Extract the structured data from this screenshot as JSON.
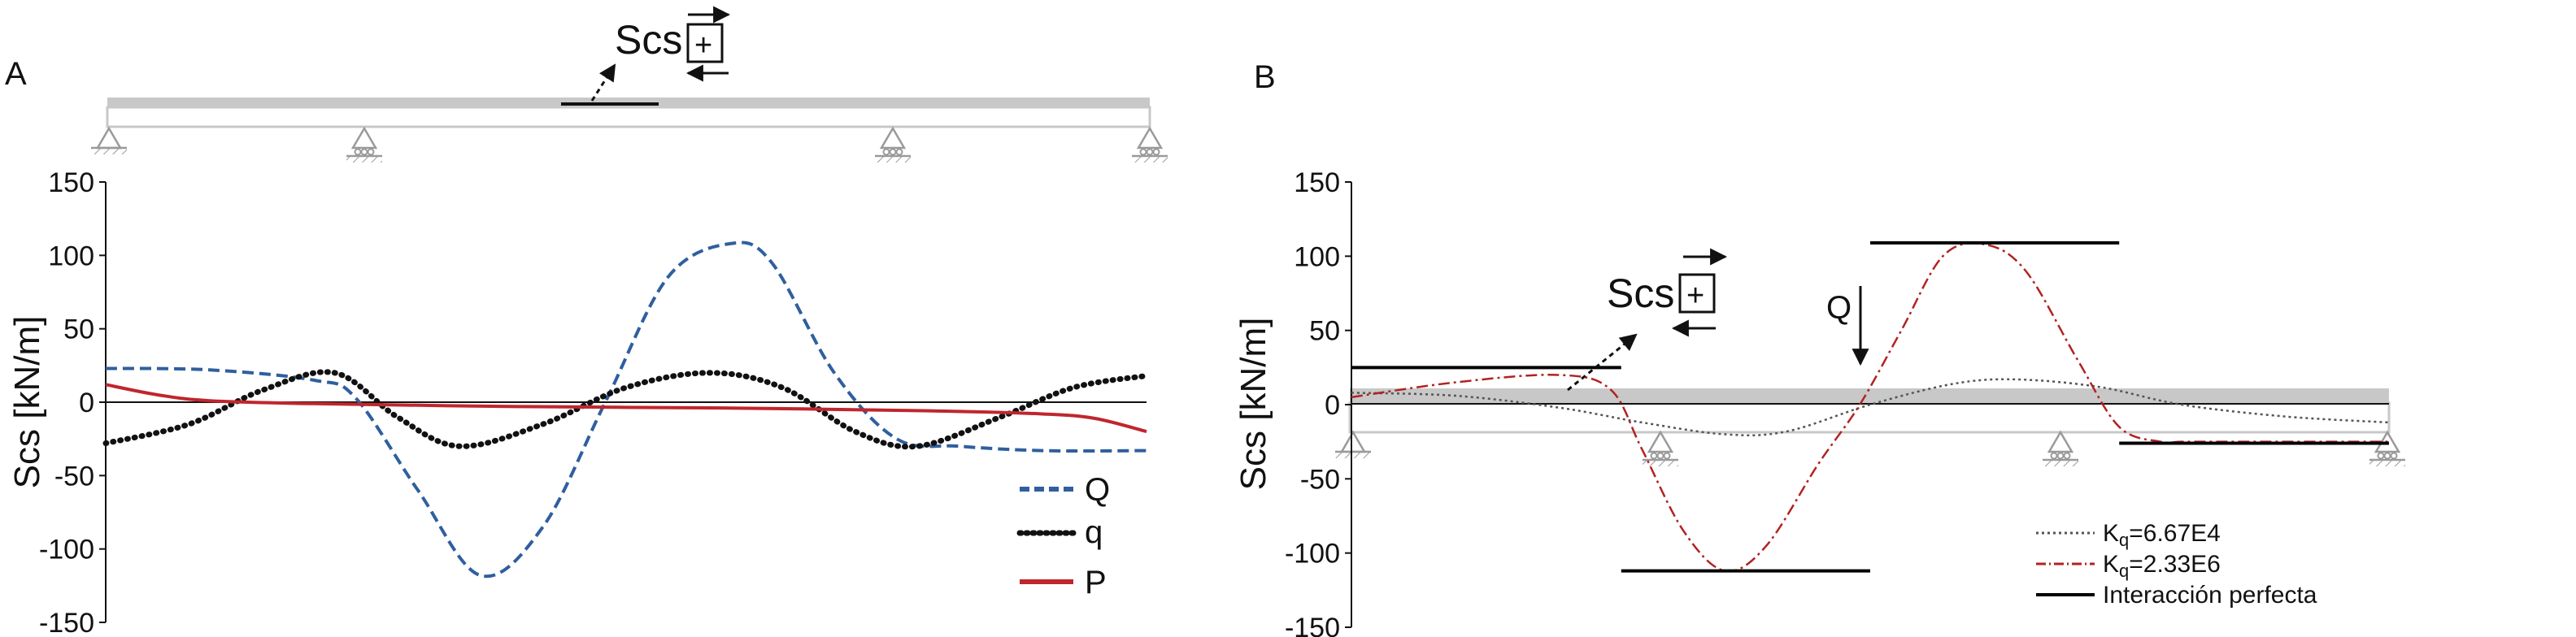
{
  "panels": {
    "a": {
      "label": "A"
    },
    "b": {
      "label": "B"
    }
  },
  "annotations": {
    "scs_symbol": "Scs",
    "plus_sign": "+",
    "load_label": "Q"
  },
  "colors": {
    "Q": "#2f5f9e",
    "q": "#111111",
    "P": "#c0262d",
    "Kq_6_67E4": "#555555",
    "Kq_2_33E6": "#b22222",
    "perfect": "#000000",
    "beam": "#c8c8c8",
    "support": "#9a9a9a"
  },
  "chart_data": [
    {
      "type": "line",
      "panel": "A",
      "ylabel": "Scs [kN/m]",
      "ylim": [
        -150,
        150
      ],
      "yticks": [
        "150",
        "100",
        "50",
        "0",
        "-50",
        "-100",
        "-150"
      ],
      "xlim": [
        0,
        1
      ],
      "legend_position": "bottom-right",
      "series": [
        {
          "name": "Q",
          "style": "dashed",
          "x": [
            0,
            0.1,
            0.2,
            0.24,
            0.3,
            0.36,
            0.42,
            0.48,
            0.54,
            0.6,
            0.64,
            0.7,
            0.76,
            0.82,
            0.9,
            1.0
          ],
          "y": [
            23,
            22,
            15,
            3,
            -60,
            -118,
            -85,
            0,
            85,
            108,
            95,
            20,
            -25,
            -30,
            -33,
            -33
          ]
        },
        {
          "name": "q",
          "style": "dotted",
          "x": [
            0,
            0.08,
            0.15,
            0.22,
            0.28,
            0.34,
            0.42,
            0.5,
            0.58,
            0.65,
            0.72,
            0.78,
            0.86,
            0.93,
            1.0
          ],
          "y": [
            -28,
            -15,
            8,
            20,
            -10,
            -30,
            -15,
            10,
            20,
            10,
            -20,
            -30,
            -10,
            10,
            18
          ]
        },
        {
          "name": "P",
          "style": "solid",
          "x": [
            0,
            0.05,
            0.1,
            0.2,
            0.4,
            0.6,
            0.8,
            0.9,
            0.95,
            1.0
          ],
          "y": [
            12,
            5,
            1,
            -1,
            -3,
            -4,
            -6,
            -8,
            -11,
            -20
          ]
        }
      ]
    },
    {
      "type": "line",
      "panel": "B",
      "ylabel": "Scs [kN/m]",
      "ylim": [
        -150,
        150
      ],
      "yticks": [
        "150",
        "100",
        "50",
        "0",
        "-50",
        "-100",
        "-150"
      ],
      "xlim": [
        0,
        1
      ],
      "legend_position": "bottom-right",
      "series": [
        {
          "name": "Kq=6.67E4",
          "legend_main": "K",
          "legend_sub": "q",
          "legend_rest": "=6.67E4",
          "style": "dotted",
          "x": [
            0,
            0.1,
            0.2,
            0.28,
            0.36,
            0.42,
            0.5,
            0.58,
            0.64,
            0.72,
            0.8,
            0.9,
            1.0
          ],
          "y": [
            8,
            6,
            -2,
            -12,
            -20,
            -18,
            0,
            14,
            17,
            12,
            0,
            -8,
            -12
          ]
        },
        {
          "name": "Kq=2.33E6",
          "legend_main": "K",
          "legend_sub": "q",
          "legend_rest": "=2.33E6",
          "style": "dashdot",
          "x": [
            0,
            0.1,
            0.2,
            0.25,
            0.28,
            0.32,
            0.36,
            0.4,
            0.45,
            0.49,
            0.53,
            0.57,
            0.61,
            0.65,
            0.7,
            0.74,
            0.78,
            0.8,
            0.85,
            1.0
          ],
          "y": [
            5,
            15,
            20,
            10,
            -30,
            -85,
            -112,
            -95,
            -40,
            0,
            50,
            100,
            108,
            90,
            30,
            -15,
            -25,
            -25,
            -25,
            -25
          ]
        },
        {
          "name": "Interacción perfecta",
          "style": "solid-steps",
          "segments": [
            {
              "x": [
                0.0,
                0.26
              ],
              "y": [
                25,
                25
              ]
            },
            {
              "x": [
                0.26,
                0.5
              ],
              "y": [
                -112,
                -112
              ]
            },
            {
              "x": [
                0.5,
                0.74
              ],
              "y": [
                109,
                109
              ]
            },
            {
              "x": [
                0.74,
                1.0
              ],
              "y": [
                -26,
                -26
              ]
            }
          ]
        }
      ]
    }
  ]
}
